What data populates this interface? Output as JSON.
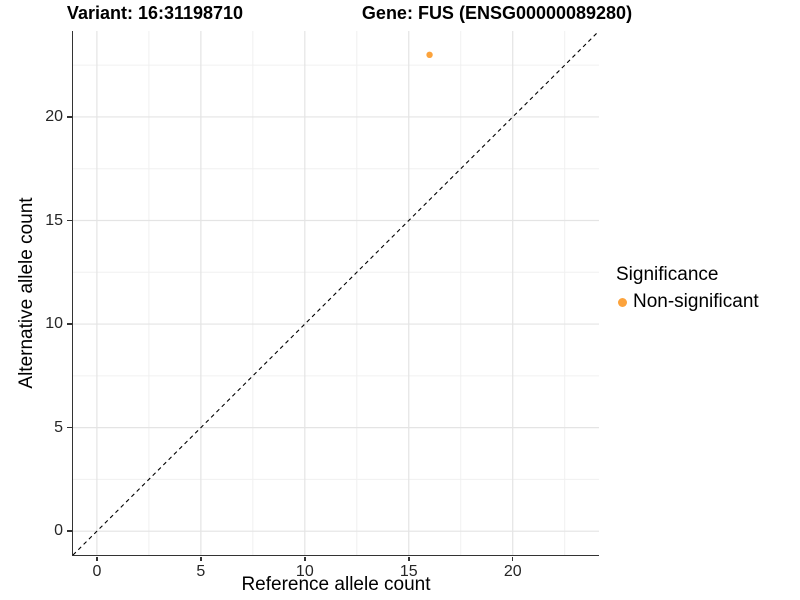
{
  "chart_data": {
    "type": "scatter",
    "titles": {
      "left": "Variant: 16:31198710",
      "right": "Gene: FUS (ENSG00000089280)"
    },
    "xlabel": "Reference allele count",
    "ylabel": "Alternative allele count",
    "xlim": [
      -1.15,
      24.15
    ],
    "ylim": [
      -1.15,
      24.15
    ],
    "xticks": [
      0,
      5,
      10,
      15,
      20
    ],
    "yticks": [
      0,
      5,
      10,
      15,
      20
    ],
    "minor_offset": 2.5,
    "grid": "major+minor",
    "identity_line": {
      "slope": 1,
      "intercept": 0,
      "linetype": "dashed",
      "color": "#000000"
    },
    "points": [
      {
        "x": 16,
        "y": 23,
        "series": "Non-significant",
        "radius": 3.2
      }
    ],
    "legend": {
      "title": "Significance",
      "position": "right",
      "items": [
        {
          "label": "Non-significant",
          "color": "#FCA33C"
        }
      ]
    },
    "colors": {
      "grid_major": "#E4E4E4",
      "grid_minor": "#F0F0F0",
      "axis_line": "#333333",
      "tick_label": "#262626",
      "background": "#FFFFFF"
    }
  }
}
